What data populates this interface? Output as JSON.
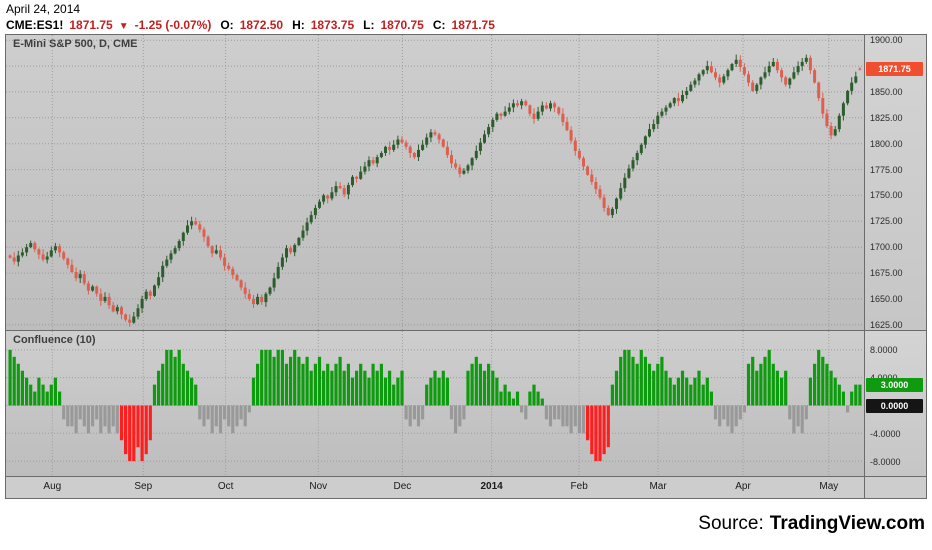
{
  "header": {
    "date": "April 24, 2014",
    "symbol": "CME:ES1!",
    "last": "1871.75",
    "arrow": "▼",
    "change": "-1.25 (-0.07%)",
    "o_label": "O:",
    "o": "1872.50",
    "h_label": "H:",
    "h": "1873.75",
    "l_label": "L:",
    "l": "1870.75",
    "c_label": "C:",
    "c": "1871.75"
  },
  "main_pane": {
    "title": "E-Mini S&P 500, D, CME",
    "price_badge": "1871.75"
  },
  "lower_pane": {
    "title": "Confluence (10)",
    "value_badge": "3.0000",
    "zero_badge": "0.0000"
  },
  "price_axis": {
    "labels": [
      "1900.00",
      "1875.00",
      "1850.00",
      "1825.00",
      "1800.00",
      "1775.00",
      "1750.00",
      "1725.00",
      "1700.00",
      "1675.00",
      "1650.00",
      "1625.00"
    ]
  },
  "indicator_axis": {
    "labels": [
      "8.0000",
      "4.0000",
      "-4.0000",
      "-8.0000"
    ],
    "levels": [
      8,
      4,
      0,
      -4,
      -8
    ]
  },
  "time_axis": {
    "ticks": [
      {
        "label": "Aug",
        "pos": 0.054
      },
      {
        "label": "Sep",
        "pos": 0.16
      },
      {
        "label": "Oct",
        "pos": 0.256
      },
      {
        "label": "Nov",
        "pos": 0.364
      },
      {
        "label": "Dec",
        "pos": 0.462
      },
      {
        "label": "2014",
        "pos": 0.566,
        "bold": true
      },
      {
        "label": "Feb",
        "pos": 0.668
      },
      {
        "label": "Mar",
        "pos": 0.76
      },
      {
        "label": "Apr",
        "pos": 0.859
      },
      {
        "label": "May",
        "pos": 0.959
      }
    ]
  },
  "footer": {
    "source_label": "Source:",
    "source_name": "TradingView.com"
  },
  "colors": {
    "candle_up": "#2d5c2d",
    "candle_down": "#dd5f4f",
    "hist_pos": "#0f9b0f",
    "hist_neg": "#999999",
    "hist_strong_neg": "#ff1e1e",
    "badge_last_bg": "#ef4f2e",
    "badge_value_bg": "#0f9b0f",
    "badge_zero_bg": "#151515",
    "header_value": "#c21f1f",
    "grid": "#9c9c9c"
  },
  "chart_data": [
    {
      "type": "candlestick",
      "title": "E-Mini S&P 500, D, CME",
      "timeframe": "daily",
      "x_range": "Aug 2013 to Apr 24, 2014",
      "ylim": [
        1620,
        1905
      ],
      "grid": true,
      "closes": [
        1690,
        1686,
        1692,
        1695,
        1700,
        1704,
        1698,
        1693,
        1688,
        1691,
        1697,
        1701,
        1695,
        1689,
        1683,
        1676,
        1670,
        1674,
        1665,
        1658,
        1662,
        1655,
        1648,
        1652,
        1644,
        1638,
        1642,
        1635,
        1630,
        1627,
        1633,
        1641,
        1650,
        1657,
        1653,
        1663,
        1671,
        1682,
        1688,
        1694,
        1699,
        1706,
        1714,
        1721,
        1725,
        1722,
        1717,
        1710,
        1701,
        1694,
        1697,
        1690,
        1682,
        1679,
        1673,
        1668,
        1661,
        1655,
        1650,
        1645,
        1652,
        1647,
        1655,
        1661,
        1670,
        1681,
        1690,
        1699,
        1695,
        1702,
        1709,
        1716,
        1724,
        1731,
        1738,
        1744,
        1750,
        1747,
        1753,
        1759,
        1757,
        1751,
        1760,
        1768,
        1766,
        1773,
        1778,
        1784,
        1781,
        1787,
        1791,
        1797,
        1794,
        1799,
        1804,
        1801,
        1797,
        1791,
        1787,
        1794,
        1799,
        1806,
        1811,
        1809,
        1804,
        1797,
        1789,
        1781,
        1777,
        1771,
        1774,
        1779,
        1786,
        1793,
        1801,
        1809,
        1816,
        1823,
        1829,
        1827,
        1831,
        1835,
        1839,
        1837,
        1841,
        1837,
        1829,
        1824,
        1831,
        1837,
        1834,
        1839,
        1835,
        1829,
        1821,
        1813,
        1803,
        1793,
        1786,
        1778,
        1770,
        1763,
        1756,
        1748,
        1738,
        1731,
        1737,
        1747,
        1757,
        1767,
        1776,
        1784,
        1791,
        1799,
        1807,
        1814,
        1819,
        1827,
        1831,
        1835,
        1839,
        1844,
        1841,
        1847,
        1851,
        1857,
        1861,
        1867,
        1871,
        1875,
        1869,
        1864,
        1859,
        1865,
        1871,
        1877,
        1881,
        1874,
        1867,
        1859,
        1851,
        1857,
        1864,
        1869,
        1875,
        1879,
        1871,
        1864,
        1857,
        1863,
        1869,
        1875,
        1879,
        1883,
        1871,
        1859,
        1844,
        1829,
        1817,
        1808,
        1814,
        1827,
        1839,
        1851,
        1859,
        1865,
        1871.75
      ],
      "last_candle": {
        "open": 1872.5,
        "high": 1873.75,
        "low": 1870.75,
        "close": 1871.75
      }
    },
    {
      "type": "bar",
      "title": "Confluence (10)",
      "ylim": [
        -9,
        9
      ],
      "current": 3.0,
      "color_rule": {
        "positive": "green",
        "mild_negative": "gray",
        "strong_negative_below": -5
      },
      "values": [
        8,
        7,
        6,
        5,
        4,
        3,
        2,
        4,
        3,
        2,
        3,
        4,
        2,
        -2,
        -3,
        -3,
        -4,
        -2,
        -3,
        -4,
        -3,
        -2,
        -4,
        -3,
        -4,
        -3,
        -4,
        -5,
        -7,
        -8,
        -8,
        -6,
        -8,
        -7,
        -5,
        3,
        5,
        6,
        8,
        8,
        7,
        8,
        6,
        5,
        4,
        3,
        -2,
        -3,
        -2,
        -4,
        -3,
        -4,
        -2,
        -3,
        -4,
        -3,
        -2,
        -3,
        -1,
        4,
        6,
        8,
        8,
        8,
        7,
        8,
        8,
        6,
        7,
        8,
        7,
        6,
        7,
        5,
        6,
        7,
        5,
        6,
        5,
        6,
        7,
        5,
        6,
        4,
        5,
        6,
        5,
        4,
        6,
        5,
        6,
        4,
        5,
        3,
        4,
        5,
        -2,
        -3,
        -2,
        -3,
        -2,
        3,
        4,
        5,
        4,
        5,
        4,
        -2,
        -4,
        -3,
        -2,
        5,
        6,
        7,
        6,
        5,
        6,
        5,
        4,
        2,
        3,
        2,
        1,
        2,
        -1,
        -2,
        2,
        3,
        2,
        1,
        -2,
        -3,
        -2,
        -2,
        -3,
        -3,
        -4,
        -3,
        -4,
        -4,
        -5,
        -7,
        -8,
        -8,
        -7,
        -6,
        3,
        5,
        7,
        8,
        8,
        7,
        6,
        8,
        7,
        6,
        5,
        6,
        7,
        5,
        4,
        3,
        4,
        5,
        4,
        3,
        4,
        5,
        3,
        4,
        2,
        -2,
        -3,
        -2,
        -3,
        -4,
        -3,
        -2,
        -1,
        6,
        7,
        5,
        6,
        7,
        8,
        6,
        5,
        4,
        5,
        -2,
        -4,
        -3,
        -4,
        -2,
        4,
        6,
        8,
        7,
        6,
        5,
        4,
        3,
        2,
        -1,
        2,
        3,
        3
      ]
    }
  ]
}
